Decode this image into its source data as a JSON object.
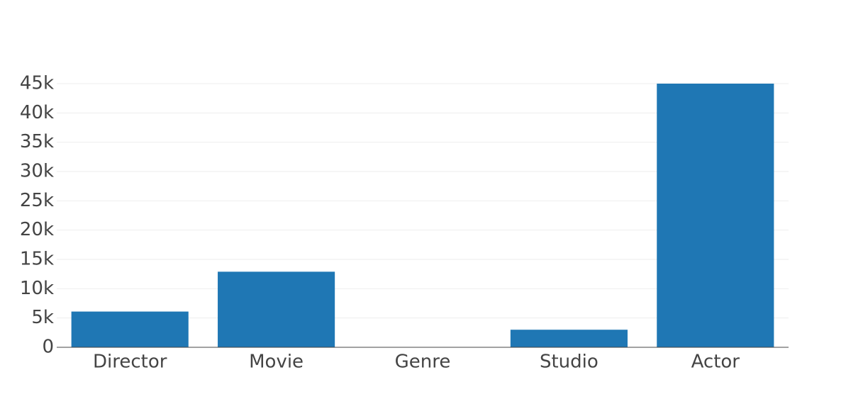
{
  "chart_data": {
    "type": "bar",
    "title": "",
    "xlabel": "",
    "ylabel": "",
    "categories": [
      "Director",
      "Movie",
      "Genre",
      "Studio",
      "Actor"
    ],
    "values": [
      6100,
      12900,
      30,
      3000,
      45000
    ],
    "ylim": [
      0,
      45000
    ],
    "yticks": [
      0,
      5000,
      10000,
      15000,
      20000,
      25000,
      30000,
      35000,
      40000,
      45000
    ],
    "ytick_labels": [
      "0",
      "5k",
      "10k",
      "15k",
      "20k",
      "25k",
      "30k",
      "35k",
      "40k",
      "45k"
    ],
    "grid": true,
    "legend": "none",
    "bar_color": "#1f77b4"
  }
}
